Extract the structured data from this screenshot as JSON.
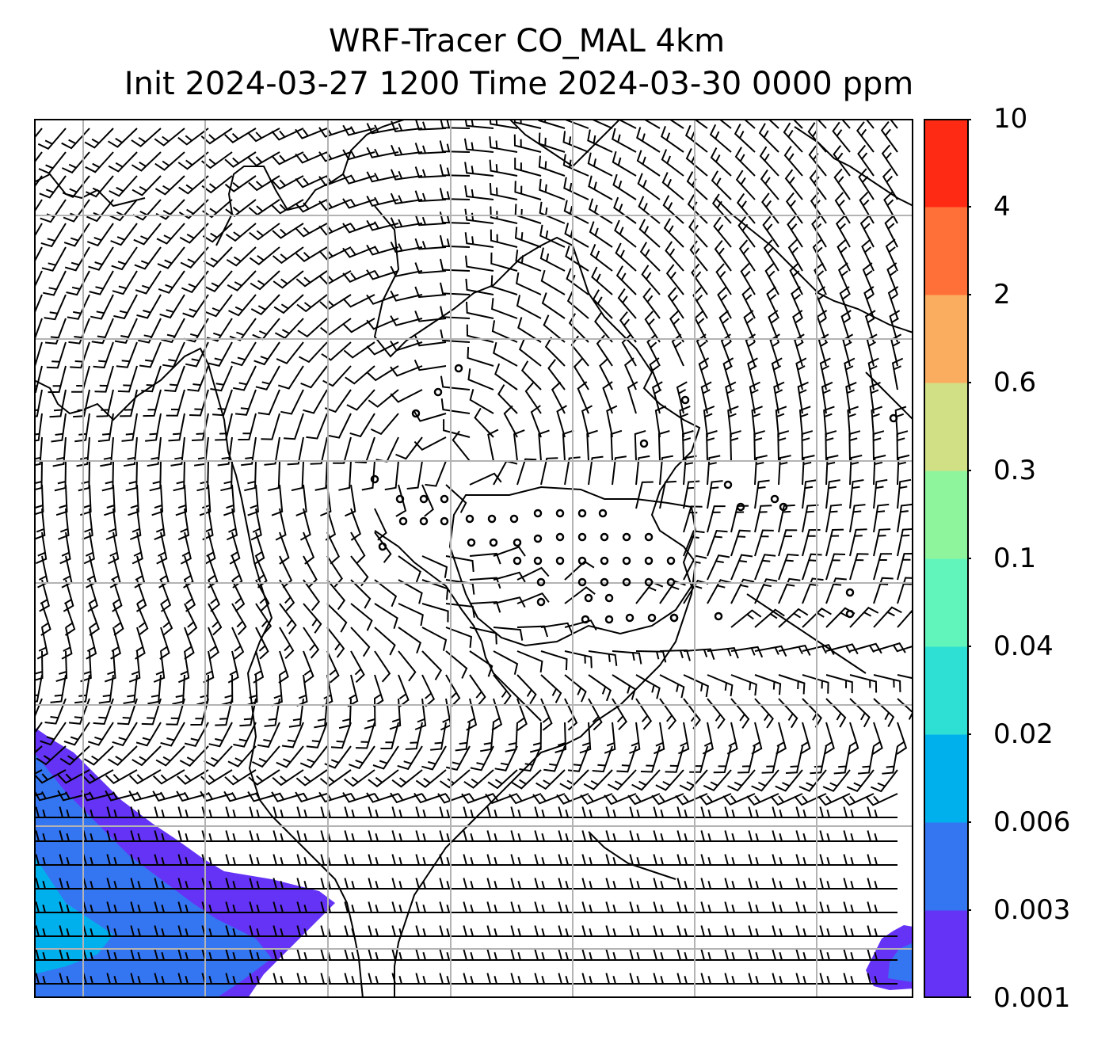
{
  "title": {
    "line1": "WRF-Tracer CO_MAL 4km",
    "line2": "Init 2024-03-27 1200 Time 2024-03-30 0000 ppm"
  },
  "colorbar": {
    "levels": [
      "0.001",
      "0.003",
      "0.006",
      "0.02",
      "0.04",
      "0.1",
      "0.3",
      "0.6",
      "2",
      "4",
      "10"
    ],
    "colors": [
      "#6433f6",
      "#3476f2",
      "#00b0ec",
      "#2ee0d3",
      "#62f5bb",
      "#8ff59c",
      "#d2e085",
      "#fbad5f",
      "#ff7038",
      "#ff2a14"
    ]
  },
  "map": {
    "variable": "CO_MAL tracer concentration with wind barbs",
    "gridlines": true
  }
}
